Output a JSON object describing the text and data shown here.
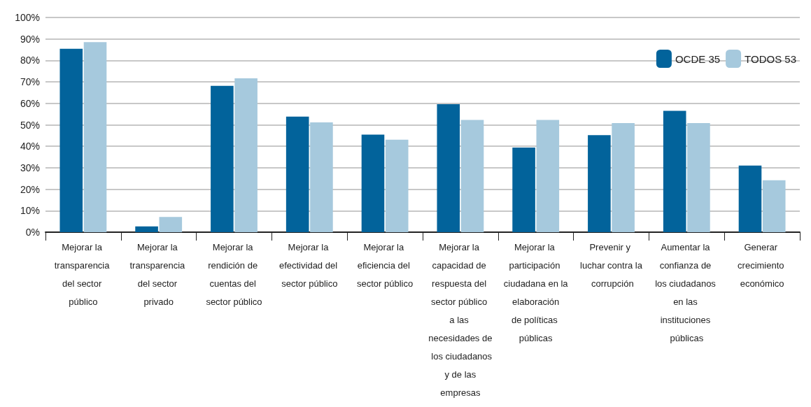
{
  "chart_data": {
    "type": "bar",
    "categories": [
      "Mejorar la transparencia del sector público",
      "Mejorar la transparencia del sector privado",
      "Mejorar la rendición de cuentas del sector público",
      "Mejorar la efectividad del sector público",
      "Mejorar la eficiencia del sector público",
      "Mejorar la capacidad de respuesta del sector público a las necesidades de los ciudadanos y de las empresas",
      "Mejorar la participación ciudadana en la elaboración de políticas públicas",
      "Prevenir y luchar contra la corrupción",
      "Aumentar la confianza de los ciudadanos en las instituciones públicas",
      "Generar crecimiento económico"
    ],
    "series": [
      {
        "name": "OCDE 35",
        "color": "#02639b",
        "values": [
          85.4,
          2.7,
          68.2,
          53.8,
          45.4,
          59.6,
          39.4,
          45.2,
          56.5,
          31
        ]
      },
      {
        "name": "TODOS 53",
        "color": "#a6c9dd",
        "values": [
          88.5,
          7.1,
          71.7,
          51.1,
          43.1,
          52.3,
          52.3,
          50.8,
          50.8,
          24.2
        ]
      }
    ],
    "ylim": [
      0,
      100
    ],
    "yticks": [
      {
        "value": 0,
        "label": "0%"
      },
      {
        "value": 10,
        "label": "10%"
      },
      {
        "value": 20,
        "label": "20%"
      },
      {
        "value": 30,
        "label": "30%"
      },
      {
        "value": 40,
        "label": "40%"
      },
      {
        "value": 50,
        "label": "50%"
      },
      {
        "value": 60,
        "label": "60%"
      },
      {
        "value": 70,
        "label": "70%"
      },
      {
        "value": 80,
        "label": "80%"
      },
      {
        "value": 90,
        "label": "90%"
      },
      {
        "value": 100,
        "label": "100%"
      }
    ],
    "grid": "y",
    "legend": "top right"
  }
}
